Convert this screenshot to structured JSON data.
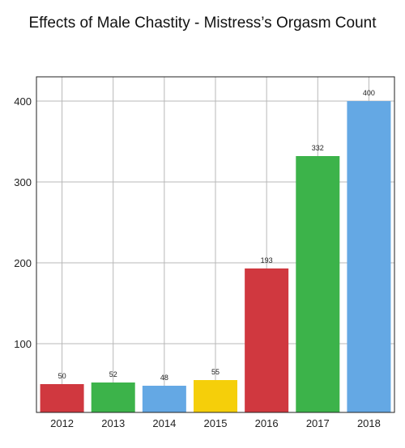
{
  "chart_data": {
    "type": "bar",
    "title": "Effects of Male Chastity - Mistress’s Orgasm Count",
    "categories": [
      "2012",
      "2013",
      "2014",
      "2015",
      "2016",
      "2017",
      "2018"
    ],
    "values": [
      50,
      52,
      48,
      55,
      193,
      332,
      400
    ],
    "data_labels": [
      "50",
      "52",
      "48",
      "55",
      "193",
      "332",
      "400"
    ],
    "colors": [
      "#d0383f",
      "#3cb34a",
      "#64a8e4",
      "#f5cf0a",
      "#d0383f",
      "#3cb34a",
      "#64a8e4"
    ],
    "xlabel": "",
    "ylabel": "",
    "ylim": [
      15,
      430
    ],
    "yticks": [
      100,
      200,
      300,
      400
    ],
    "ytick_labels": [
      "100",
      "200",
      "300",
      "400"
    ],
    "grid": true,
    "legend": "none"
  }
}
